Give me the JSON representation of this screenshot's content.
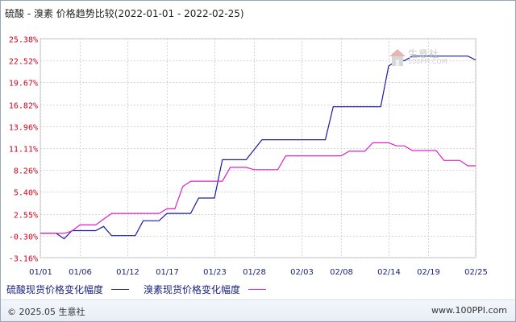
{
  "title": "硫酸 - 溴素 价格趋势比较(2022-01-01 - 2022-02-25)",
  "watermark": {
    "text": "生意社",
    "url": "100PPI.COM"
  },
  "footer": {
    "left": "© 2025.05 生意社",
    "right": "www.100PPI.com"
  },
  "colors": {
    "series1": "#1a1aa6",
    "series2": "#e020c8",
    "grid": "#d0d0d0",
    "ytick": "#d0021b",
    "xtick": "#1a237e"
  },
  "chart_data": {
    "type": "line",
    "title": "硫酸 - 溴素 价格趋势比较(2022-01-01 - 2022-02-25)",
    "xlabel": "",
    "ylabel": "",
    "xlim": [
      "2022-01-01",
      "2022-02-25"
    ],
    "ylim": [
      -3.16,
      25.38
    ],
    "yticks": [
      "25.38%",
      "22.52%",
      "19.67%",
      "16.82%",
      "13.96%",
      "11.11%",
      "8.26%",
      "5.40%",
      "2.55%",
      "-0.30%",
      "-3.16%"
    ],
    "ytick_values": [
      25.38,
      22.52,
      19.67,
      16.82,
      13.96,
      11.11,
      8.26,
      5.4,
      2.55,
      -0.3,
      -3.16
    ],
    "xticks": [
      "01/01",
      "01/06",
      "01/12",
      "01/17",
      "01/23",
      "01/28",
      "02/03",
      "02/08",
      "02/14",
      "02/19",
      "02/25"
    ],
    "xtick_dates": [
      "2022-01-01",
      "2022-01-06",
      "2022-01-12",
      "2022-01-17",
      "2022-01-23",
      "2022-01-28",
      "2022-02-03",
      "2022-02-08",
      "2022-02-14",
      "2022-02-19",
      "2022-02-25"
    ],
    "grid": true,
    "legend_position": "bottom",
    "series": [
      {
        "name": "硫酸现货价格变化幅度",
        "color": "#1a1aa6",
        "points": [
          [
            "2022-01-01",
            0.0
          ],
          [
            "2022-01-03",
            0.0
          ],
          [
            "2022-01-04",
            -0.7
          ],
          [
            "2022-01-05",
            0.35
          ],
          [
            "2022-01-08",
            0.35
          ],
          [
            "2022-01-09",
            0.9
          ],
          [
            "2022-01-10",
            -0.3
          ],
          [
            "2022-01-13",
            -0.3
          ],
          [
            "2022-01-14",
            1.65
          ],
          [
            "2022-01-16",
            1.65
          ],
          [
            "2022-01-17",
            2.6
          ],
          [
            "2022-01-20",
            2.6
          ],
          [
            "2022-01-21",
            4.6
          ],
          [
            "2022-01-23",
            4.6
          ],
          [
            "2022-01-24",
            9.6
          ],
          [
            "2022-01-27",
            9.6
          ],
          [
            "2022-01-29",
            12.2
          ],
          [
            "2022-02-06",
            12.2
          ],
          [
            "2022-02-07",
            16.5
          ],
          [
            "2022-02-13",
            16.5
          ],
          [
            "2022-02-14",
            21.8
          ],
          [
            "2022-02-15",
            22.5
          ],
          [
            "2022-02-16",
            22.5
          ],
          [
            "2022-02-17",
            23.1
          ],
          [
            "2022-02-24",
            23.1
          ],
          [
            "2022-02-25",
            22.6
          ]
        ]
      },
      {
        "name": "溴素现货价格变化幅度",
        "color": "#e020c8",
        "points": [
          [
            "2022-01-01",
            0.0
          ],
          [
            "2022-01-04",
            0.0
          ],
          [
            "2022-01-05",
            0.3
          ],
          [
            "2022-01-06",
            1.1
          ],
          [
            "2022-01-08",
            1.1
          ],
          [
            "2022-01-10",
            2.6
          ],
          [
            "2022-01-16",
            2.6
          ],
          [
            "2022-01-17",
            3.2
          ],
          [
            "2022-01-18",
            3.2
          ],
          [
            "2022-01-19",
            6.1
          ],
          [
            "2022-01-20",
            6.8
          ],
          [
            "2022-01-24",
            6.8
          ],
          [
            "2022-01-25",
            8.6
          ],
          [
            "2022-01-27",
            8.6
          ],
          [
            "2022-01-28",
            8.3
          ],
          [
            "2022-01-31",
            8.3
          ],
          [
            "2022-02-01",
            10.1
          ],
          [
            "2022-02-08",
            10.1
          ],
          [
            "2022-02-09",
            10.7
          ],
          [
            "2022-02-11",
            10.7
          ],
          [
            "2022-02-12",
            11.8
          ],
          [
            "2022-02-14",
            11.8
          ],
          [
            "2022-02-15",
            11.4
          ],
          [
            "2022-02-16",
            11.4
          ],
          [
            "2022-02-17",
            10.8
          ],
          [
            "2022-02-20",
            10.8
          ],
          [
            "2022-02-21",
            9.5
          ],
          [
            "2022-02-23",
            9.5
          ],
          [
            "2022-02-24",
            8.8
          ],
          [
            "2022-02-25",
            8.8
          ]
        ]
      }
    ]
  }
}
